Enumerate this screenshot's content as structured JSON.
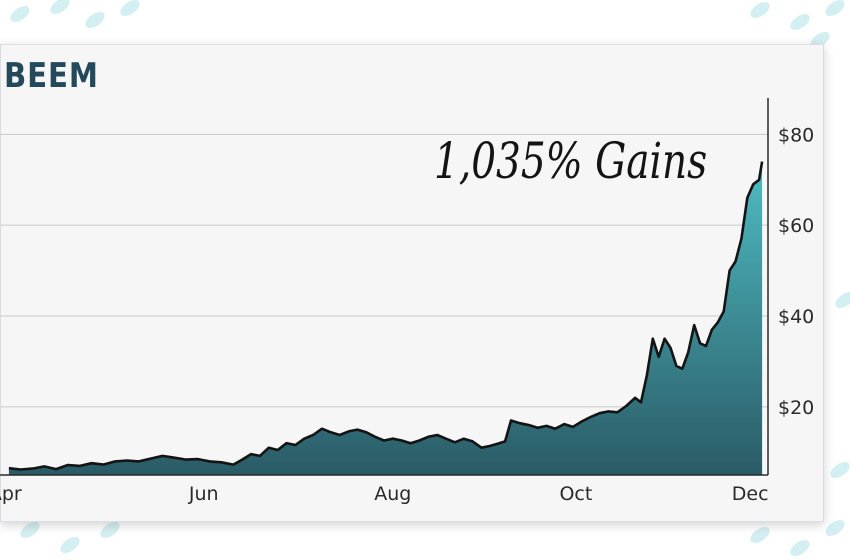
{
  "title": "BEEM",
  "annotation": "1,035% Gains",
  "colors": {
    "line": "#141414",
    "area_top": "#4fbcc3",
    "area_bottom": "#2a5b66",
    "grid": "#c9c9c9",
    "title": "#23495a",
    "pattern": "#cfeef0"
  },
  "chart_data": {
    "type": "area",
    "title": "BEEM",
    "annotations": [
      "1,035% Gains"
    ],
    "x_tick_labels": [
      "Apr",
      "Jun",
      "Aug",
      "Oct",
      "Dec"
    ],
    "y_tick_labels": [
      "$20",
      "$40",
      "$60",
      "$80"
    ],
    "y_ticks": [
      20,
      40,
      60,
      80
    ],
    "ylim": [
      5,
      88
    ],
    "y_axis_position": "right",
    "grid": "horizontal",
    "series": [
      {
        "values": [
          [
            0.0,
            6.5
          ],
          [
            0.4,
            6.2
          ],
          [
            0.8,
            6.4
          ],
          [
            1.2,
            6.9
          ],
          [
            1.6,
            6.3
          ],
          [
            2.0,
            7.2
          ],
          [
            2.4,
            7.0
          ],
          [
            2.8,
            7.6
          ],
          [
            3.2,
            7.3
          ],
          [
            3.6,
            8.0
          ],
          [
            4.0,
            8.2
          ],
          [
            4.4,
            8.0
          ],
          [
            4.8,
            8.6
          ],
          [
            5.2,
            9.2
          ],
          [
            5.6,
            8.8
          ],
          [
            6.0,
            8.4
          ],
          [
            6.4,
            8.5
          ],
          [
            6.8,
            8.0
          ],
          [
            7.2,
            7.8
          ],
          [
            7.6,
            7.3
          ],
          [
            7.9,
            8.4
          ],
          [
            8.2,
            9.6
          ],
          [
            8.5,
            9.2
          ],
          [
            8.8,
            11.0
          ],
          [
            9.1,
            10.5
          ],
          [
            9.4,
            12.0
          ],
          [
            9.7,
            11.6
          ],
          [
            10.0,
            13.0
          ],
          [
            10.3,
            13.8
          ],
          [
            10.6,
            15.2
          ],
          [
            10.9,
            14.4
          ],
          [
            11.2,
            13.8
          ],
          [
            11.5,
            14.6
          ],
          [
            11.8,
            15.0
          ],
          [
            12.1,
            14.4
          ],
          [
            12.4,
            13.4
          ],
          [
            12.7,
            12.6
          ],
          [
            13.0,
            13.0
          ],
          [
            13.3,
            12.6
          ],
          [
            13.6,
            12.0
          ],
          [
            13.9,
            12.6
          ],
          [
            14.2,
            13.4
          ],
          [
            14.5,
            13.8
          ],
          [
            14.8,
            13.0
          ],
          [
            15.1,
            12.2
          ],
          [
            15.4,
            13.0
          ],
          [
            15.7,
            12.4
          ],
          [
            16.0,
            11.0
          ],
          [
            16.3,
            11.4
          ],
          [
            16.6,
            12.0
          ],
          [
            16.8,
            12.4
          ],
          [
            17.0,
            17.0
          ],
          [
            17.3,
            16.4
          ],
          [
            17.6,
            16.0
          ],
          [
            17.9,
            15.4
          ],
          [
            18.2,
            15.8
          ],
          [
            18.5,
            15.2
          ],
          [
            18.8,
            16.2
          ],
          [
            19.1,
            15.6
          ],
          [
            19.4,
            16.8
          ],
          [
            19.7,
            17.8
          ],
          [
            20.0,
            18.6
          ],
          [
            20.3,
            19.0
          ],
          [
            20.6,
            18.8
          ],
          [
            20.9,
            20.2
          ],
          [
            21.2,
            22.0
          ],
          [
            21.4,
            21.0
          ],
          [
            21.6,
            27.0
          ],
          [
            21.8,
            35.0
          ],
          [
            22.0,
            31.0
          ],
          [
            22.2,
            35.0
          ],
          [
            22.4,
            33.0
          ],
          [
            22.6,
            29.0
          ],
          [
            22.8,
            28.4
          ],
          [
            23.0,
            32.0
          ],
          [
            23.2,
            38.0
          ],
          [
            23.4,
            34.0
          ],
          [
            23.6,
            33.4
          ],
          [
            23.8,
            37.0
          ],
          [
            24.0,
            38.6
          ],
          [
            24.2,
            41.0
          ],
          [
            24.4,
            50.0
          ],
          [
            24.6,
            52.0
          ],
          [
            24.8,
            57.0
          ],
          [
            25.0,
            66.0
          ],
          [
            25.2,
            69.0
          ],
          [
            25.4,
            70.0
          ],
          [
            25.5,
            74.0
          ]
        ]
      }
    ]
  }
}
